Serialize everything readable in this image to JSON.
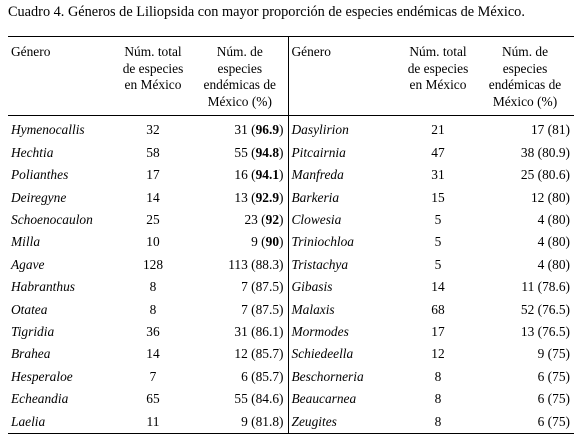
{
  "caption": "Cuadro 4. Géneros de Liliopsida con mayor proporción de especies endémicas de México.",
  "headers": {
    "genus": "Género",
    "total": "Núm. total de especies en México",
    "endemic": "Núm. de especies endémicas de México (%)"
  },
  "rows_left": [
    {
      "genus": "Hymenocallis",
      "total": "32",
      "count": "31",
      "pct": "96.9",
      "bold": true
    },
    {
      "genus": "Hechtia",
      "total": "58",
      "count": "55",
      "pct": "94.8",
      "bold": true
    },
    {
      "genus": "Polianthes",
      "total": "17",
      "count": "16",
      "pct": "94.1",
      "bold": true
    },
    {
      "genus": "Deiregyne",
      "total": "14",
      "count": "13",
      "pct": "92.9",
      "bold": true
    },
    {
      "genus": "Schoenocaulon",
      "total": "25",
      "count": "23",
      "pct": "92",
      "bold": true
    },
    {
      "genus": "Milla",
      "total": "10",
      "count": "9",
      "pct": "90",
      "bold": true
    },
    {
      "genus": "Agave",
      "total": "128",
      "count": "113",
      "pct": "88.3",
      "bold": false
    },
    {
      "genus": "Habranthus",
      "total": "8",
      "count": "7",
      "pct": "87.5",
      "bold": false
    },
    {
      "genus": "Otatea",
      "total": "8",
      "count": "7",
      "pct": "87.5",
      "bold": false
    },
    {
      "genus": "Tigridia",
      "total": "36",
      "count": "31",
      "pct": "86.1",
      "bold": false
    },
    {
      "genus": "Brahea",
      "total": "14",
      "count": "12",
      "pct": "85.7",
      "bold": false
    },
    {
      "genus": "Hesperaloe",
      "total": "7",
      "count": "6",
      "pct": "85.7",
      "bold": false
    },
    {
      "genus": "Echeandia",
      "total": "65",
      "count": "55",
      "pct": "84.6",
      "bold": false
    },
    {
      "genus": "Laelia",
      "total": "11",
      "count": "9",
      "pct": "81.8",
      "bold": false
    }
  ],
  "rows_right": [
    {
      "genus": "Dasylirion",
      "total": "21",
      "count": "17",
      "pct": "81",
      "bold": false
    },
    {
      "genus": "Pitcairnia",
      "total": "47",
      "count": "38",
      "pct": "80.9",
      "bold": false
    },
    {
      "genus": "Manfreda",
      "total": "31",
      "count": "25",
      "pct": "80.6",
      "bold": false
    },
    {
      "genus": "Barkeria",
      "total": "15",
      "count": "12",
      "pct": "80",
      "bold": false
    },
    {
      "genus": "Clowesia",
      "total": "5",
      "count": "4",
      "pct": "80",
      "bold": false
    },
    {
      "genus": "Triniochloa",
      "total": "5",
      "count": "4",
      "pct": "80",
      "bold": false
    },
    {
      "genus": "Tristachya",
      "total": "5",
      "count": "4",
      "pct": "80",
      "bold": false
    },
    {
      "genus": "Gibasis",
      "total": "14",
      "count": "11",
      "pct": "78.6",
      "bold": false
    },
    {
      "genus": "Malaxis",
      "total": "68",
      "count": "52",
      "pct": "76.5",
      "bold": false
    },
    {
      "genus": "Mormodes",
      "total": "17",
      "count": "13",
      "pct": "76.5",
      "bold": false
    },
    {
      "genus": "Schiedeella",
      "total": "12",
      "count": "9",
      "pct": "75",
      "bold": false
    },
    {
      "genus": "Beschorneria",
      "total": "8",
      "count": "6",
      "pct": "75",
      "bold": false
    },
    {
      "genus": "Beaucarnea",
      "total": "8",
      "count": "6",
      "pct": "75",
      "bold": false
    },
    {
      "genus": "Zeugites",
      "total": "8",
      "count": "6",
      "pct": "75",
      "bold": false
    }
  ]
}
